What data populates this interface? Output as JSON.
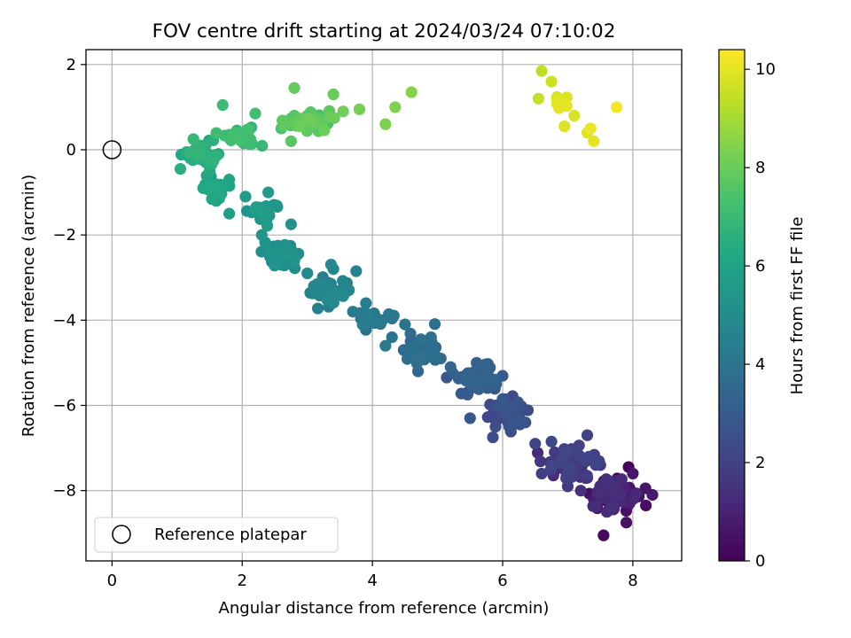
{
  "chart_data": {
    "type": "scatter",
    "title": "FOV centre drift starting at 2024/03/24 07:10:02",
    "xlabel": "Angular distance from reference (arcmin)",
    "ylabel": "Rotation from reference (arcmin)",
    "colorbar_label": "Hours from first FF file",
    "colormap": "viridis",
    "xlim": [
      -0.4,
      8.75
    ],
    "ylim": [
      -9.65,
      2.35
    ],
    "clim": [
      0,
      10.4
    ],
    "x_ticks": [
      "0",
      "2",
      "4",
      "6",
      "8"
    ],
    "y_ticks": [
      "2",
      "0",
      "−2",
      "−4",
      "−6",
      "−8"
    ],
    "colorbar_ticks": [
      "0",
      "2",
      "4",
      "6",
      "8",
      "10"
    ],
    "grid": true,
    "legend": {
      "placement": "lower-left",
      "entries": [
        {
          "label": "Reference platepar",
          "marker": "open-circle",
          "x": 0,
          "y": 0
        }
      ]
    },
    "points": [
      [
        7.55,
        -9.05,
        0.2
      ],
      [
        8.2,
        -8.35,
        0.4
      ],
      [
        7.9,
        -8.75,
        0.5
      ],
      [
        8.0,
        -7.6,
        0.6
      ],
      [
        8.3,
        -8.1,
        0.7
      ],
      [
        7.4,
        -8.2,
        0.8
      ],
      [
        7.7,
        -7.9,
        0.9
      ],
      [
        7.95,
        -8.3,
        1.0
      ],
      [
        7.3,
        -7.7,
        1.1
      ],
      [
        7.1,
        -7.5,
        1.2
      ],
      [
        7.6,
        -8.5,
        1.3
      ],
      [
        7.2,
        -8.0,
        1.4
      ],
      [
        6.9,
        -7.3,
        1.5
      ],
      [
        7.5,
        -7.4,
        1.6
      ],
      [
        7.0,
        -7.9,
        1.7
      ],
      [
        6.8,
        -7.1,
        1.8
      ],
      [
        6.6,
        -7.6,
        1.9
      ],
      [
        7.3,
        -6.7,
        2.0
      ],
      [
        6.5,
        -6.9,
        2.1
      ],
      [
        6.2,
        -6.2,
        2.2
      ],
      [
        6.75,
        -6.85,
        2.3
      ],
      [
        5.85,
        -6.75,
        2.4
      ],
      [
        6.35,
        -6.4,
        2.5
      ],
      [
        6.1,
        -6.5,
        2.6
      ],
      [
        5.9,
        -6.0,
        2.7
      ],
      [
        5.5,
        -6.3,
        2.8
      ],
      [
        6.0,
        -5.85,
        2.9
      ],
      [
        5.7,
        -5.5,
        3.0
      ],
      [
        5.4,
        -5.35,
        3.1
      ],
      [
        5.9,
        -5.5,
        3.2
      ],
      [
        5.6,
        -5.0,
        3.3
      ],
      [
        5.2,
        -5.1,
        3.4
      ],
      [
        4.7,
        -5.2,
        3.5
      ],
      [
        5.05,
        -4.9,
        3.6
      ],
      [
        4.6,
        -4.75,
        3.7
      ],
      [
        4.9,
        -4.4,
        3.8
      ],
      [
        4.3,
        -4.4,
        3.9
      ],
      [
        4.5,
        -4.1,
        4.0
      ],
      [
        4.0,
        -4.05,
        4.1
      ],
      [
        4.2,
        -4.6,
        4.2
      ],
      [
        3.7,
        -3.8,
        4.3
      ],
      [
        3.9,
        -3.6,
        4.4
      ],
      [
        3.75,
        -2.85,
        4.5
      ],
      [
        3.4,
        -3.55,
        4.6
      ],
      [
        3.1,
        -3.2,
        4.7
      ],
      [
        3.4,
        -2.8,
        4.8
      ],
      [
        3.0,
        -2.9,
        4.9
      ],
      [
        2.8,
        -2.6,
        5.0
      ],
      [
        2.6,
        -2.7,
        5.1
      ],
      [
        2.55,
        -2.25,
        5.2
      ],
      [
        2.75,
        -1.75,
        5.3
      ],
      [
        2.3,
        -2.0,
        5.4
      ],
      [
        2.5,
        -1.3,
        5.5
      ],
      [
        2.4,
        -1.0,
        5.6
      ],
      [
        2.05,
        -1.1,
        5.7
      ],
      [
        1.8,
        -1.5,
        5.8
      ],
      [
        2.2,
        -1.4,
        5.9
      ],
      [
        1.6,
        -1.2,
        6.0
      ],
      [
        1.8,
        -0.7,
        6.1
      ],
      [
        1.4,
        -0.9,
        6.2
      ],
      [
        1.5,
        -0.5,
        6.3
      ],
      [
        1.2,
        -0.2,
        6.4
      ],
      [
        1.05,
        -0.45,
        6.5
      ],
      [
        1.35,
        0.1,
        6.6
      ],
      [
        1.6,
        -0.15,
        6.7
      ],
      [
        1.8,
        0.35,
        6.8
      ],
      [
        1.25,
        0.25,
        6.9
      ],
      [
        2.1,
        0.45,
        7.0
      ],
      [
        1.7,
        1.05,
        7.1
      ],
      [
        2.2,
        0.85,
        7.2
      ],
      [
        2.6,
        0.5,
        7.4
      ],
      [
        3.0,
        0.8,
        7.6
      ],
      [
        2.75,
        0.2,
        7.7
      ],
      [
        3.2,
        0.6,
        7.8
      ],
      [
        2.8,
        1.45,
        7.9
      ],
      [
        3.4,
        1.3,
        8.0
      ],
      [
        3.55,
        0.9,
        8.1
      ],
      [
        3.8,
        0.95,
        8.2
      ],
      [
        4.2,
        0.6,
        8.3
      ],
      [
        4.35,
        1.0,
        8.4
      ],
      [
        4.6,
        1.35,
        8.5
      ],
      [
        6.6,
        1.85,
        9.4
      ],
      [
        6.55,
        1.2,
        9.5
      ],
      [
        6.75,
        1.6,
        9.6
      ],
      [
        6.9,
        1.1,
        9.7
      ],
      [
        7.1,
        0.8,
        9.8
      ],
      [
        6.95,
        0.55,
        9.85
      ],
      [
        7.3,
        0.4,
        9.9
      ],
      [
        7.4,
        0.2,
        10.0
      ],
      [
        7.35,
        0.5,
        10.1
      ],
      [
        7.75,
        1.0,
        10.3
      ]
    ],
    "clusters": [
      {
        "center": [
          7.75,
          -8.1
        ],
        "spread": [
          0.35,
          0.35
        ],
        "count": 70,
        "hours": [
          0.1,
          1.4
        ]
      },
      {
        "center": [
          7.05,
          -7.35
        ],
        "spread": [
          0.35,
          0.35
        ],
        "count": 55,
        "hours": [
          1.2,
          2.2
        ]
      },
      {
        "center": [
          6.1,
          -6.2
        ],
        "spread": [
          0.3,
          0.35
        ],
        "count": 40,
        "hours": [
          2.1,
          2.8
        ]
      },
      {
        "center": [
          5.6,
          -5.35
        ],
        "spread": [
          0.3,
          0.3
        ],
        "count": 45,
        "hours": [
          2.8,
          3.4
        ]
      },
      {
        "center": [
          4.75,
          -4.7
        ],
        "spread": [
          0.25,
          0.3
        ],
        "count": 35,
        "hours": [
          3.3,
          3.9
        ]
      },
      {
        "center": [
          4.0,
          -4.0
        ],
        "spread": [
          0.25,
          0.25
        ],
        "count": 30,
        "hours": [
          3.8,
          4.4
        ]
      },
      {
        "center": [
          3.3,
          -3.25
        ],
        "spread": [
          0.3,
          0.3
        ],
        "count": 30,
        "hours": [
          4.3,
          4.9
        ]
      },
      {
        "center": [
          2.65,
          -2.45
        ],
        "spread": [
          0.25,
          0.3
        ],
        "count": 40,
        "hours": [
          4.8,
          5.4
        ]
      },
      {
        "center": [
          2.35,
          -1.45
        ],
        "spread": [
          0.2,
          0.3
        ],
        "count": 20,
        "hours": [
          5.3,
          5.8
        ]
      },
      {
        "center": [
          1.6,
          -0.9
        ],
        "spread": [
          0.2,
          0.25
        ],
        "count": 25,
        "hours": [
          5.7,
          6.3
        ]
      },
      {
        "center": [
          1.35,
          -0.1
        ],
        "spread": [
          0.2,
          0.25
        ],
        "count": 45,
        "hours": [
          6.2,
          6.8
        ]
      },
      {
        "center": [
          1.95,
          0.3
        ],
        "spread": [
          0.25,
          0.25
        ],
        "count": 25,
        "hours": [
          6.7,
          7.3
        ]
      },
      {
        "center": [
          3.0,
          0.65
        ],
        "spread": [
          0.3,
          0.25
        ],
        "count": 40,
        "hours": [
          7.3,
          8.1
        ]
      },
      {
        "center": [
          6.85,
          1.15
        ],
        "spread": [
          0.12,
          0.2
        ],
        "count": 10,
        "hours": [
          9.4,
          10.1
        ]
      }
    ]
  }
}
